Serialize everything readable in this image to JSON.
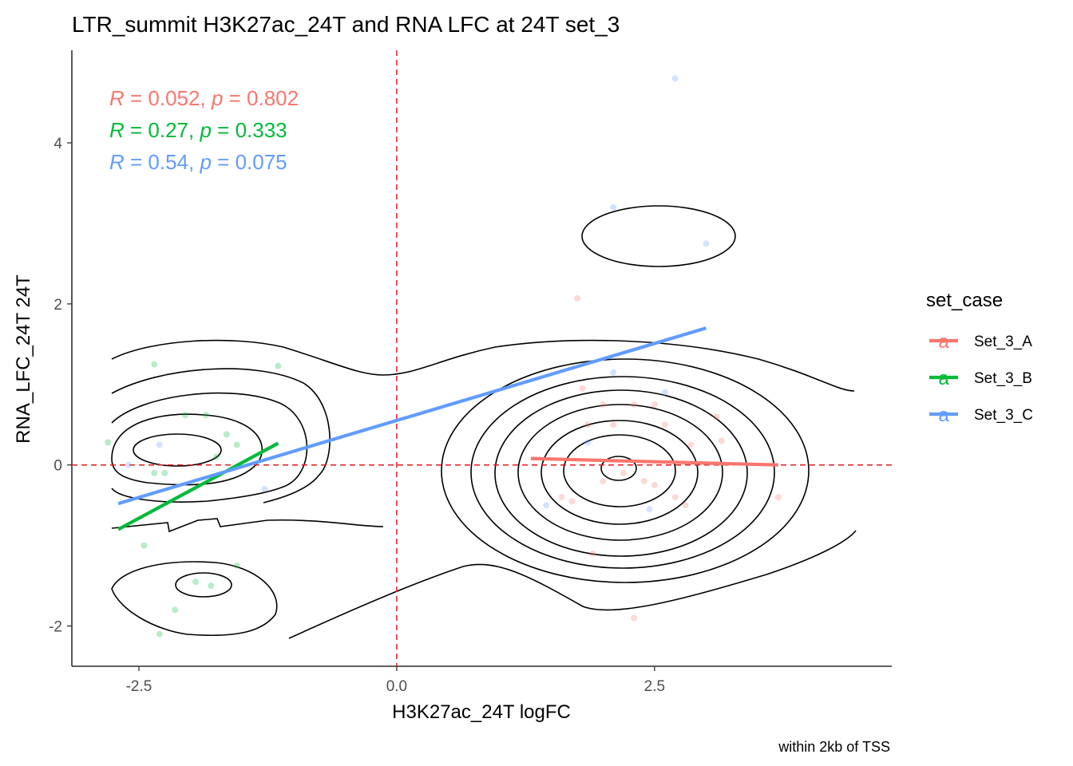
{
  "chart_data": {
    "type": "scatter",
    "title": "LTR_summit H3K27ac_24T and RNA LFC at 24T set_3",
    "xlabel": "H3K27ac_24T logFC",
    "ylabel": "RNA_LFC_24T 24T",
    "caption": "within 2kb of TSS",
    "xlim": [
      -3.15,
      4.8
    ],
    "ylim": [
      -2.5,
      5.15
    ],
    "x_ticks": [
      -2.5,
      0.0,
      2.5
    ],
    "x_tick_labels": [
      "-2.5",
      "0.0",
      "2.5"
    ],
    "y_ticks": [
      -2,
      0,
      2,
      4
    ],
    "y_tick_labels": [
      "-2",
      "0",
      "2",
      "4"
    ],
    "grid": false,
    "reference_lines": {
      "x": 0,
      "y": 0,
      "color": "#e41a1c",
      "style": "dashed"
    },
    "legend": {
      "title": "set_case",
      "placement": "right",
      "entries": [
        {
          "label": "Set_3_A",
          "color": "#F8766D",
          "glyph": "a"
        },
        {
          "label": "Set_3_B",
          "color": "#00BA38",
          "glyph": "a"
        },
        {
          "label": "Set_3_C",
          "color": "#619CFF",
          "glyph": "a"
        }
      ]
    },
    "annotations": [
      {
        "series": "Set_3_A",
        "r": "0.052",
        "p": "0.802",
        "color": "#F8766D"
      },
      {
        "series": "Set_3_B",
        "r": "0.27",
        "p": "0.333",
        "color": "#00BA38"
      },
      {
        "series": "Set_3_C",
        "r": "0.54",
        "p": "0.075",
        "color": "#619CFF"
      }
    ],
    "series": [
      {
        "name": "Set_3_A",
        "color": "#F8766D",
        "points": [
          [
            1.75,
            2.07
          ],
          [
            1.8,
            0.95
          ],
          [
            2.0,
            0.75
          ],
          [
            2.3,
            0.75
          ],
          [
            2.5,
            0.75
          ],
          [
            1.85,
            0.5
          ],
          [
            2.1,
            0.5
          ],
          [
            2.6,
            0.5
          ],
          [
            2.85,
            0.25
          ],
          [
            3.15,
            0.3
          ],
          [
            1.6,
            -0.4
          ],
          [
            1.7,
            -0.45
          ],
          [
            2.0,
            -0.2
          ],
          [
            2.2,
            -0.1
          ],
          [
            2.4,
            -0.2
          ],
          [
            2.5,
            -0.25
          ],
          [
            2.7,
            -0.4
          ],
          [
            2.8,
            -0.5
          ],
          [
            1.9,
            -1.1
          ],
          [
            2.3,
            -1.9
          ],
          [
            3.7,
            -0.4
          ],
          [
            3.1,
            0.6
          ]
        ],
        "fit": {
          "x": [
            1.3,
            3.7
          ],
          "y": [
            0.08,
            0.0
          ]
        }
      },
      {
        "name": "Set_3_B",
        "color": "#00BA38",
        "points": [
          [
            -2.8,
            0.28
          ],
          [
            -2.35,
            -0.1
          ],
          [
            -2.25,
            -0.1
          ],
          [
            -2.05,
            0.62
          ],
          [
            -1.85,
            0.62
          ],
          [
            -1.75,
            0.1
          ],
          [
            -1.65,
            0.38
          ],
          [
            -1.55,
            0.25
          ],
          [
            -2.35,
            1.25
          ],
          [
            -1.15,
            1.23
          ],
          [
            -2.45,
            -1.0
          ],
          [
            -1.95,
            -1.45
          ],
          [
            -1.8,
            -1.5
          ],
          [
            -1.55,
            -1.25
          ],
          [
            -2.15,
            -1.8
          ],
          [
            -2.3,
            -2.1
          ]
        ],
        "fit": {
          "x": [
            -2.7,
            -1.15
          ],
          "y": [
            -0.8,
            0.27
          ]
        }
      },
      {
        "name": "Set_3_C",
        "color": "#619CFF",
        "points": [
          [
            2.7,
            4.8
          ],
          [
            2.1,
            3.2
          ],
          [
            3.0,
            2.75
          ],
          [
            2.1,
            1.15
          ],
          [
            2.6,
            0.9
          ],
          [
            1.85,
            0.28
          ],
          [
            1.45,
            -0.5
          ],
          [
            2.45,
            -0.55
          ],
          [
            -2.3,
            0.25
          ],
          [
            -1.28,
            -0.3
          ],
          [
            -2.6,
            0.0
          ]
        ],
        "fit": {
          "x": [
            -2.7,
            3.0
          ],
          "y": [
            -0.48,
            1.7
          ]
        }
      }
    ]
  }
}
